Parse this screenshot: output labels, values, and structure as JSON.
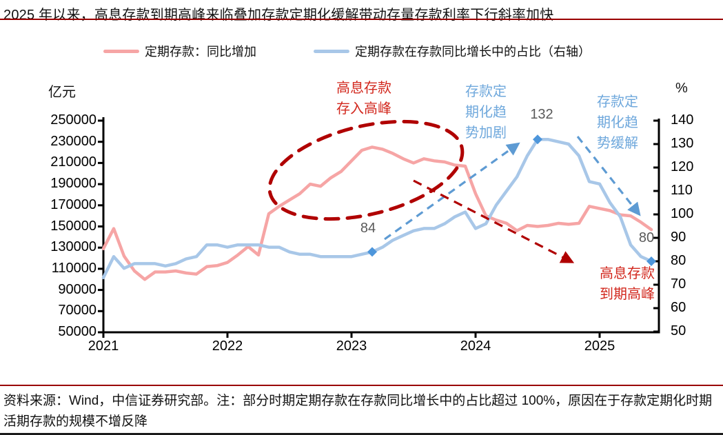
{
  "header": {
    "title": "2025 年以来，高息存款到期高峰来临叠加存款定期化缓解带动存量存款利率下行斜率加快"
  },
  "legend": {
    "items": [
      {
        "label": "定期存款：同比增加",
        "color": "#F6A5A5"
      },
      {
        "label": "定期存款在存款同比增长中的占比（右轴）",
        "color": "#A8C7E8"
      }
    ]
  },
  "chart_data": {
    "type": "line",
    "x_start": "2021-01",
    "x_freq": "monthly",
    "x_ticks": [
      "2021",
      "2022",
      "2023",
      "2024",
      "2025"
    ],
    "y_left": {
      "unit": "亿元",
      "range": [
        50000,
        250000
      ],
      "ticks": [
        250000,
        230000,
        210000,
        190000,
        170000,
        150000,
        130000,
        110000,
        90000,
        70000,
        50000
      ]
    },
    "y_right": {
      "unit": "%",
      "range": [
        50,
        140
      ],
      "ticks": [
        140,
        130,
        120,
        110,
        100,
        90,
        80,
        70,
        60,
        50
      ]
    },
    "grid": false,
    "legend_position": "top",
    "series": [
      {
        "name": "定期存款：同比增加",
        "axis": "left",
        "color": "#F6A5A5",
        "values": [
          129000,
          148000,
          122000,
          108000,
          100000,
          107000,
          107000,
          108000,
          106000,
          105000,
          112000,
          113000,
          116000,
          123000,
          131000,
          123000,
          162000,
          169000,
          175000,
          181000,
          190000,
          188000,
          196000,
          202000,
          212000,
          222000,
          225000,
          223000,
          219000,
          214000,
          210000,
          214000,
          212000,
          211000,
          208000,
          207000,
          181000,
          160000,
          156000,
          153000,
          146000,
          151000,
          150000,
          151000,
          153000,
          152000,
          153000,
          169000,
          167000,
          165000,
          161000,
          160000,
          154000,
          147000
        ]
      },
      {
        "name": "定期存款在存款同比增长中的占比（右轴）",
        "axis": "right",
        "color": "#A8C7E8",
        "values": [
          73,
          82,
          77,
          79,
          79,
          79,
          78,
          79,
          81,
          82,
          87,
          87,
          86,
          87,
          87,
          87,
          86,
          86,
          84,
          83,
          83,
          82,
          82,
          82,
          82,
          83,
          84,
          86,
          89,
          91,
          93,
          94,
          94,
          96,
          99,
          101,
          94,
          96,
          104,
          110,
          116,
          125,
          132,
          132,
          131,
          130,
          125,
          114,
          113,
          105,
          99,
          87,
          82,
          80
        ]
      }
    ],
    "labeled_points": [
      {
        "series": 1,
        "index": 26,
        "value": 84,
        "label": "84"
      },
      {
        "series": 1,
        "index": 42,
        "value": 132,
        "label": "132"
      },
      {
        "series": 1,
        "index": 53,
        "value": 80,
        "label": "80"
      }
    ]
  },
  "annotations": {
    "high_rate_inflow_peak": "高息存款\n存入高峰",
    "term_trend_up": "存款定\n期化趋\n势加剧",
    "term_trend_ease": "存款定\n期化趋\n势缓解",
    "high_rate_maturity_peak": "高息存款\n到期高峰",
    "colors": {
      "red_text": "#D2281E",
      "blue_text": "#6FA8DC",
      "dark_red": "#B00000",
      "blue_arrow": "#5E9BD3",
      "diamond": "#4D96DB"
    }
  },
  "footer": {
    "note": "资料来源：Wind，中信证券研究部。注：部分时期定期存款在存款同比增长中的占比超过 100%，原因在于存款定期化时期活期存款的规模不增反降"
  }
}
